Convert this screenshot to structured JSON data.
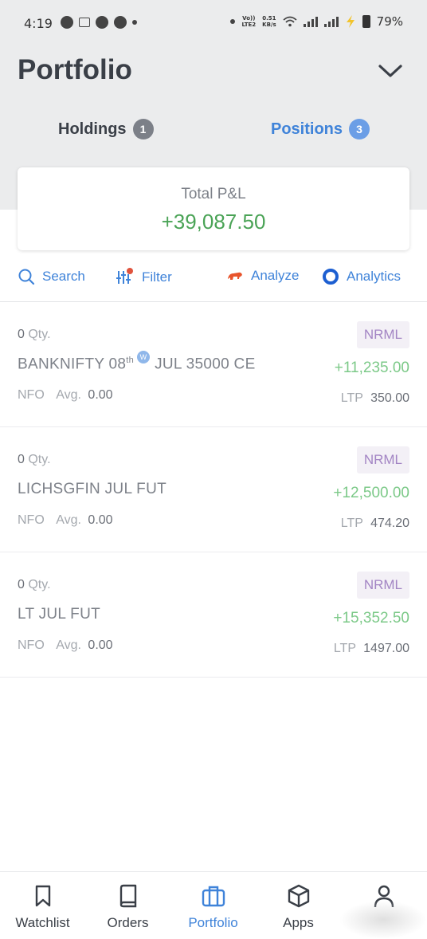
{
  "status_bar": {
    "time": "4:19",
    "net_label_top": "Vo))",
    "net_label_bottom": "LTE2",
    "speed_top": "0.51",
    "speed_bottom": "KB/s",
    "battery": "79%"
  },
  "header": {
    "title": "Portfolio",
    "tabs": [
      {
        "label": "Holdings",
        "count": "1",
        "active": false
      },
      {
        "label": "Positions",
        "count": "3",
        "active": true
      }
    ]
  },
  "total_pnl": {
    "label": "Total P&L",
    "value": "+39,087.50"
  },
  "toolbar": {
    "search": "Search",
    "filter": "Filter",
    "analyze": "Analyze",
    "analytics": "Analytics"
  },
  "positions": [
    {
      "qty": "0",
      "qty_unit": "Qty.",
      "symbol_prefix": "BANKNIFTY 08",
      "symbol_sup": "th",
      "weekly_badge": "W",
      "symbol_suffix": "JUL 35000 CE",
      "exchange": "NFO",
      "avg_label": "Avg.",
      "avg": "0.00",
      "product": "NRML",
      "pnl": "+11,235.00",
      "ltp_label": "LTP",
      "ltp": "350.00"
    },
    {
      "qty": "0",
      "qty_unit": "Qty.",
      "symbol": "LICHSGFIN JUL FUT",
      "exchange": "NFO",
      "avg_label": "Avg.",
      "avg": "0.00",
      "product": "NRML",
      "pnl": "+12,500.00",
      "ltp_label": "LTP",
      "ltp": "474.20"
    },
    {
      "qty": "0",
      "qty_unit": "Qty.",
      "symbol": "LT JUL FUT",
      "exchange": "NFO",
      "avg_label": "Avg.",
      "avg": "0.00",
      "product": "NRML",
      "pnl": "+15,352.50",
      "ltp_label": "LTP",
      "ltp": "1497.00"
    }
  ],
  "bottom_nav": [
    {
      "label": "Watchlist",
      "icon": "bookmark-icon",
      "active": false
    },
    {
      "label": "Orders",
      "icon": "book-icon",
      "active": false
    },
    {
      "label": "Portfolio",
      "icon": "briefcase-icon",
      "active": true
    },
    {
      "label": "Apps",
      "icon": "cube-icon",
      "active": false
    },
    {
      "label": "",
      "icon": "user-icon",
      "active": false
    }
  ],
  "colors": {
    "accent": "#3f83d9",
    "profit": "#4aa356",
    "header_bg": "#ebeced",
    "product_badge": "#a385c4"
  }
}
